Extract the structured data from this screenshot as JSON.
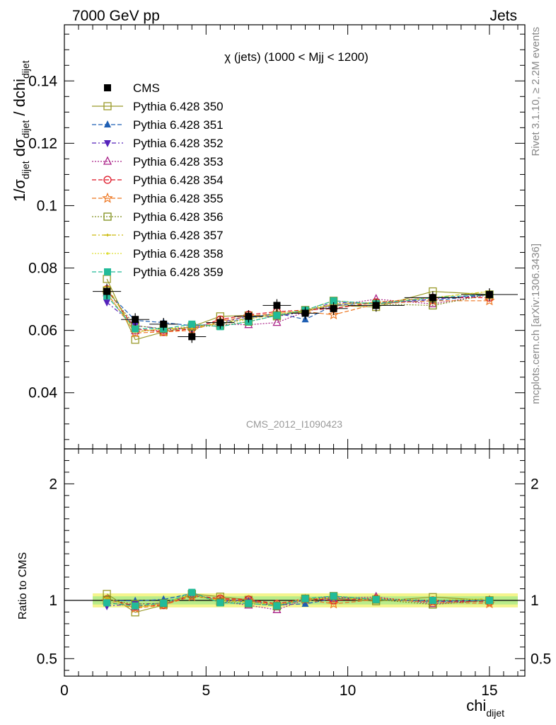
{
  "header": {
    "energy": "7000 GeV pp",
    "process": "Jets",
    "rivet": "Rivet 3.1.10, ≥ 2.2M events",
    "mcplots": "mcplots.cern.ch [arXiv:1306.3436]",
    "analysis": "CMS_2012_I1090423"
  },
  "chart_data": {
    "type": "line",
    "title": "χ (jets) (1000 < Mjj < 1200)",
    "xlabel": "chi",
    "xlabel_sub": "dijet",
    "ylabel_parts": [
      "1/σ",
      "dijet",
      " dσ",
      "dijet",
      " / dchi",
      "dijet"
    ],
    "ratio_ylabel": "Ratio to CMS",
    "xlim": [
      0,
      16.25
    ],
    "ylim": [
      0.022,
      0.158
    ],
    "ratio_ylim": [
      0.35,
      2.3
    ],
    "x_ticks": [
      0,
      5,
      10,
      15
    ],
    "y_ticks": [
      0.04,
      0.06,
      0.08,
      0.1,
      0.12,
      0.14
    ],
    "y_tick_labels": [
      "0.04",
      "0.06",
      "0.08",
      "0.1",
      "0.12",
      "0.14"
    ],
    "ratio_ticks": [
      0.5,
      1,
      2
    ],
    "ratio_tick_labels": [
      "0.5",
      "1",
      "2"
    ],
    "x": [
      1.5,
      2.5,
      3.5,
      4.5,
      5.5,
      6.5,
      7.5,
      8.5,
      9.5,
      11,
      13,
      15
    ],
    "bin_edges": [
      1,
      2,
      3,
      4,
      5,
      6,
      7,
      8,
      9,
      10,
      12,
      14,
      16
    ],
    "data": {
      "name": "CMS",
      "values": [
        0.0725,
        0.0635,
        0.062,
        0.058,
        0.0625,
        0.0645,
        0.068,
        0.0655,
        0.067,
        0.068,
        0.0705,
        0.0715
      ],
      "errors": [
        0.0025,
        0.002,
        0.002,
        0.002,
        0.002,
        0.002,
        0.002,
        0.002,
        0.002,
        0.002,
        0.002,
        0.002
      ]
    },
    "series": [
      {
        "name": "Pythia 6.428 350",
        "color": "#9a9a2a",
        "marker": "square-open",
        "dash": "",
        "values": [
          0.0765,
          0.057,
          0.0595,
          0.0612,
          0.0645,
          0.0648,
          0.0645,
          0.0665,
          0.068,
          0.0675,
          0.0725,
          0.0715
        ]
      },
      {
        "name": "Pythia 6.428 351",
        "color": "#1f5fb4",
        "marker": "triangle-up",
        "dash": "6,3",
        "values": [
          0.0725,
          0.0632,
          0.0625,
          0.0615,
          0.062,
          0.064,
          0.0655,
          0.0635,
          0.068,
          0.069,
          0.0695,
          0.0715
        ]
      },
      {
        "name": "Pythia 6.428 352",
        "color": "#5522bb",
        "marker": "triangle-down",
        "dash": "6,3,2,3",
        "values": [
          0.069,
          0.0615,
          0.0605,
          0.0605,
          0.0625,
          0.0645,
          0.0645,
          0.066,
          0.069,
          0.0685,
          0.07,
          0.0715
        ]
      },
      {
        "name": "Pythia 6.428 353",
        "color": "#aa2288",
        "marker": "triangle-up-open",
        "dash": "2,2",
        "values": [
          0.072,
          0.0598,
          0.06,
          0.0612,
          0.062,
          0.0618,
          0.0625,
          0.066,
          0.068,
          0.07,
          0.0685,
          0.0715
        ]
      },
      {
        "name": "Pythia 6.428 354",
        "color": "#dd1122",
        "marker": "circle-open",
        "dash": "6,3",
        "values": [
          0.0732,
          0.0605,
          0.0595,
          0.0605,
          0.0635,
          0.065,
          0.066,
          0.0665,
          0.067,
          0.069,
          0.0705,
          0.0705
        ]
      },
      {
        "name": "Pythia 6.428 355",
        "color": "#ee7722",
        "marker": "star-open",
        "dash": "6,3",
        "values": [
          0.072,
          0.0592,
          0.0595,
          0.06,
          0.063,
          0.0645,
          0.0655,
          0.066,
          0.065,
          0.0685,
          0.0695,
          0.0695
        ]
      },
      {
        "name": "Pythia 6.428 356",
        "color": "#7f8f1a",
        "marker": "square-open",
        "dash": "2,2",
        "values": [
          0.0728,
          0.0615,
          0.0605,
          0.0612,
          0.0615,
          0.0628,
          0.0648,
          0.0665,
          0.0695,
          0.0685,
          0.068,
          0.0715
        ]
      },
      {
        "name": "Pythia 6.428 357",
        "color": "#ccbb11",
        "marker": "tick",
        "dash": "6,3,2,3",
        "values": [
          0.074,
          0.0595,
          0.0605,
          0.0605,
          0.0625,
          0.0638,
          0.065,
          0.066,
          0.0685,
          0.0685,
          0.0705,
          0.0725
        ]
      },
      {
        "name": "Pythia 6.428 358",
        "color": "#dddd33",
        "marker": "dot",
        "dash": "2,2",
        "values": [
          0.072,
          0.0595,
          0.0605,
          0.0612,
          0.062,
          0.0635,
          0.0655,
          0.0665,
          0.0685,
          0.069,
          0.0705,
          0.0725
        ]
      },
      {
        "name": "Pythia 6.428 359",
        "color": "#22bb99",
        "marker": "square",
        "dash": "6,3",
        "values": [
          0.071,
          0.0605,
          0.0605,
          0.062,
          0.0612,
          0.0628,
          0.0648,
          0.0665,
          0.0695,
          0.0685,
          0.0705,
          0.0715
        ]
      }
    ]
  }
}
